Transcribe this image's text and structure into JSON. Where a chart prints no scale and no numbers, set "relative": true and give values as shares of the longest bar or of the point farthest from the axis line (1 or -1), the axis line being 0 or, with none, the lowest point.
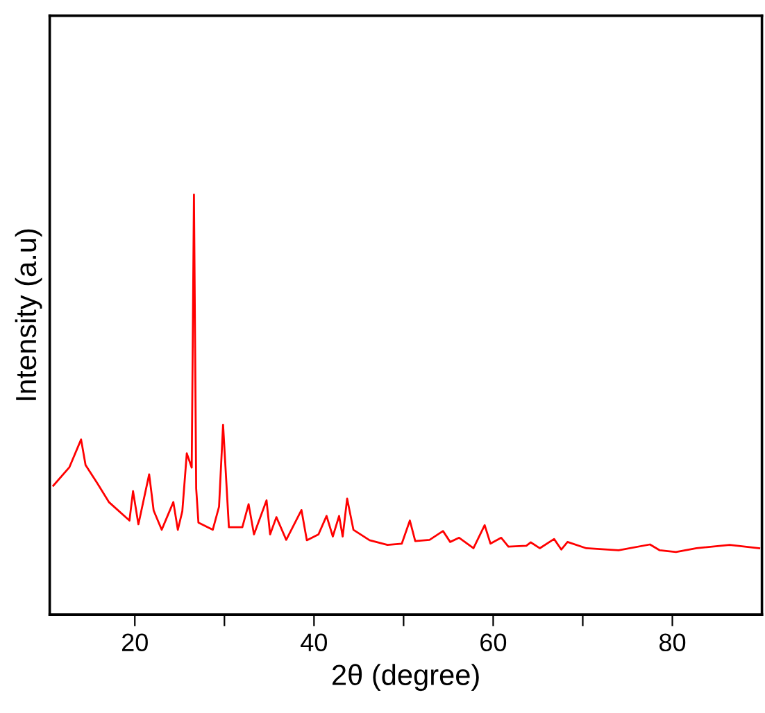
{
  "chart_data": {
    "type": "line",
    "relative": true,
    "xlabel": "2θ (degree)",
    "ylabel": "Intensity (a.u)",
    "xlim": [
      10.5,
      90
    ],
    "xticks": [
      20,
      {
        "value": 30,
        "label": null
      },
      40,
      {
        "value": 50,
        "label": null
      },
      60,
      {
        "value": 70,
        "label": null
      },
      80
    ],
    "tick_labels": "x",
    "grid": false,
    "legend": false,
    "marker": "none",
    "line_style": "solid",
    "series": [
      {
        "color": "#ff0000",
        "x": [
          10.9,
          12.7,
          14.0,
          14.5,
          15.8,
          17.1,
          19.4,
          19.8,
          20.4,
          21.6,
          22.1,
          23.0,
          24.3,
          24.8,
          25.3,
          25.8,
          26.35,
          26.6,
          26.85,
          27.1,
          28.7,
          29.4,
          29.85,
          30.5,
          32.0,
          32.7,
          33.3,
          34.7,
          35.1,
          35.8,
          36.9,
          38.6,
          39.2,
          40.5,
          41.4,
          42.1,
          42.8,
          43.2,
          43.7,
          44.4,
          46.2,
          48.2,
          49.8,
          50.7,
          51.3,
          52.9,
          54.4,
          55.2,
          56.2,
          57.8,
          59.05,
          59.7,
          60.9,
          61.7,
          63.7,
          64.2,
          65.2,
          66.8,
          67.6,
          68.3,
          70.4,
          74.0,
          77.5,
          78.6,
          80.4,
          82.7,
          86.4,
          89.7
        ],
        "values": [
          0.307,
          0.351,
          0.417,
          0.356,
          0.313,
          0.268,
          0.224,
          0.294,
          0.215,
          0.334,
          0.248,
          0.202,
          0.268,
          0.202,
          0.246,
          0.384,
          0.35,
          1.0,
          0.3,
          0.219,
          0.202,
          0.257,
          0.452,
          0.208,
          0.208,
          0.263,
          0.191,
          0.272,
          0.191,
          0.232,
          0.178,
          0.249,
          0.177,
          0.191,
          0.235,
          0.186,
          0.235,
          0.186,
          0.276,
          0.202,
          0.177,
          0.166,
          0.169,
          0.224,
          0.175,
          0.178,
          0.199,
          0.173,
          0.183,
          0.158,
          0.213,
          0.169,
          0.183,
          0.162,
          0.164,
          0.172,
          0.158,
          0.18,
          0.155,
          0.173,
          0.158,
          0.153,
          0.167,
          0.153,
          0.149,
          0.158,
          0.166,
          0.158
        ]
      }
    ]
  }
}
